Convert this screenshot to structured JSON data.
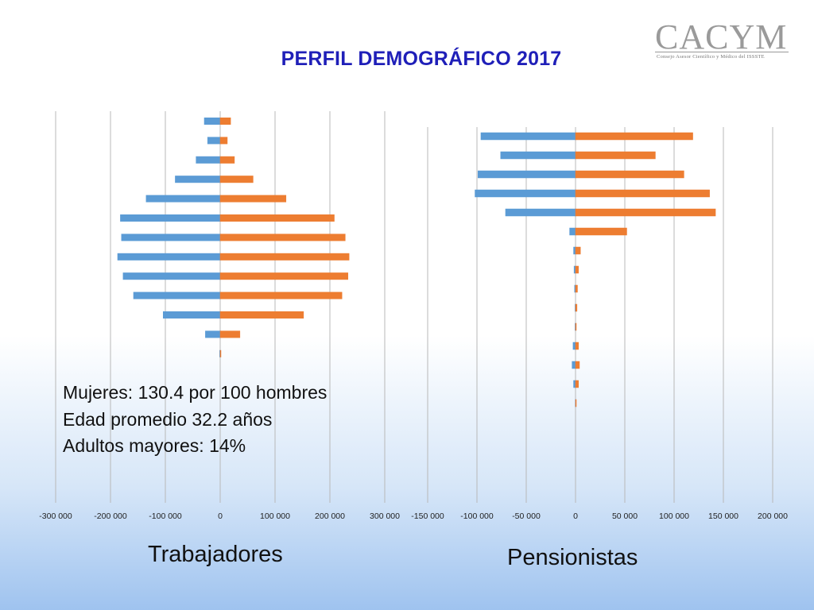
{
  "slide": {
    "title": "PERFIL DEMOGRÁFICO 2017",
    "logo": {
      "main": "CACYM",
      "sub": "Consejo Asesor Científico y Médico del ISSSTE"
    },
    "annotations": [
      "Mujeres: 130.4 por 100 hombres",
      "Edad promedio 32.2 años",
      "Adultos mayores: 14%"
    ]
  },
  "colors": {
    "left_series": "#5b9bd5",
    "right_series": "#ed7d31",
    "title": "#1f1fb8",
    "gridline": "#b8b8b8"
  },
  "chart_data": [
    {
      "type": "bar",
      "orientation": "horizontal",
      "label": "Trabajadores",
      "xlim": [
        -300000,
        300000
      ],
      "xticks": [
        -300000,
        -200000,
        -100000,
        0,
        100000,
        200000,
        300000
      ],
      "xtick_labels": [
        "-300 000",
        "-200 000",
        "-100 000",
        "0",
        "100 000",
        "200 000",
        "300 000"
      ],
      "grid": true,
      "legend": "none",
      "series": [
        {
          "color": "#5b9bd5",
          "values_top_to_bottom": [
            -29000,
            -23000,
            -44000,
            -82000,
            -135000,
            -182000,
            -180000,
            -187000,
            -177000,
            -158000,
            -104000,
            -27000,
            -1000
          ]
        },
        {
          "color": "#ed7d31",
          "values_top_to_bottom": [
            19000,
            13000,
            26000,
            60000,
            120000,
            208000,
            228000,
            235000,
            233000,
            222000,
            152000,
            36000,
            1000
          ]
        }
      ]
    },
    {
      "type": "bar",
      "orientation": "horizontal",
      "label": "Pensionistas",
      "xlim": [
        -150000,
        200000
      ],
      "xticks": [
        -150000,
        -100000,
        -50000,
        0,
        50000,
        100000,
        150000,
        200000
      ],
      "xtick_labels": [
        "-150 000",
        "-100 000",
        "-50 000",
        "0",
        "50 000",
        "100 000",
        "150 000",
        "200 000"
      ],
      "grid": true,
      "legend": "none",
      "series": [
        {
          "color": "#5b9bd5",
          "values_top_to_bottom": [
            -96000,
            -76000,
            -99000,
            -102000,
            -71000,
            -6000,
            -2000,
            -1500,
            -1000,
            -500,
            -500,
            -2500,
            -3500,
            -2000,
            -300
          ]
        },
        {
          "color": "#ed7d31",
          "values_top_to_bottom": [
            119000,
            81000,
            110000,
            136000,
            142000,
            52000,
            5000,
            3000,
            2000,
            1500,
            500,
            3000,
            4000,
            3000,
            500
          ]
        }
      ]
    }
  ]
}
